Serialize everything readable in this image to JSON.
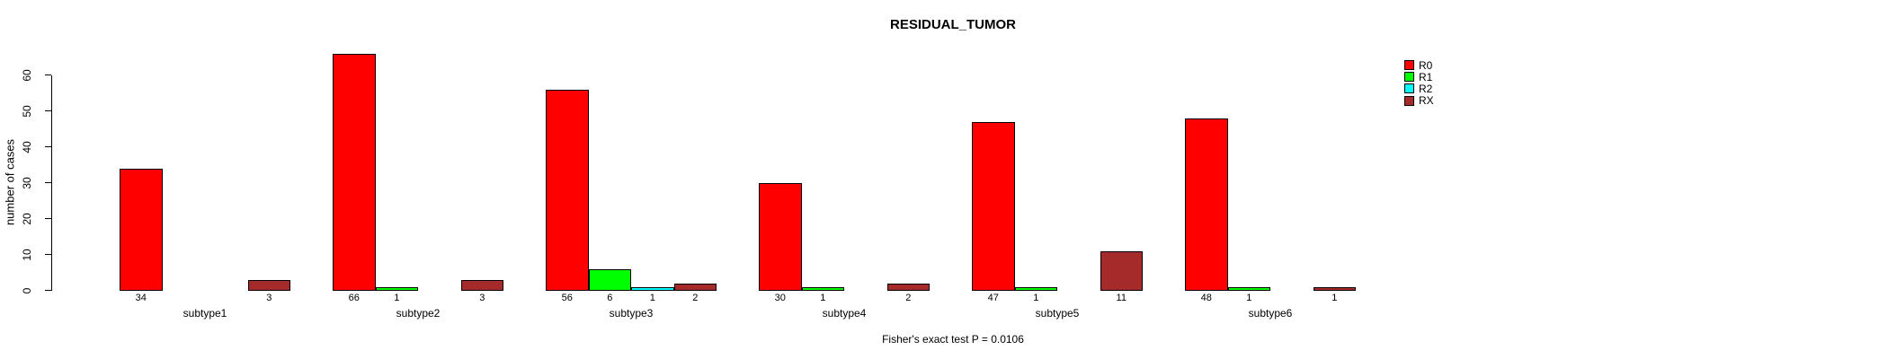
{
  "chart_data": {
    "type": "bar",
    "title": "RESIDUAL_TUMOR",
    "footer": "Fisher's exact test P = 0.0106",
    "ylabel": "number of cases",
    "xlabel": "",
    "yticks": [
      0,
      10,
      20,
      30,
      40,
      50,
      60
    ],
    "ylim": [
      0,
      66
    ],
    "grid": false,
    "legend_position": "inside-top-right",
    "value_labels": "shown under each nonzero bar",
    "categories": [
      "subtype1",
      "subtype2",
      "subtype3",
      "subtype4",
      "subtype5",
      "subtype6"
    ],
    "series": [
      {
        "name": "R0",
        "color": "#ff0000",
        "values": [
          34,
          66,
          56,
          30,
          47,
          48
        ]
      },
      {
        "name": "R1",
        "color": "#00ff00",
        "values": [
          0,
          1,
          6,
          1,
          1,
          1
        ]
      },
      {
        "name": "R2",
        "color": "#00ffff",
        "values": [
          0,
          0,
          1,
          0,
          0,
          0
        ]
      },
      {
        "name": "RX",
        "color": "#a52a2a",
        "values": [
          3,
          3,
          2,
          2,
          11,
          1
        ]
      }
    ]
  }
}
